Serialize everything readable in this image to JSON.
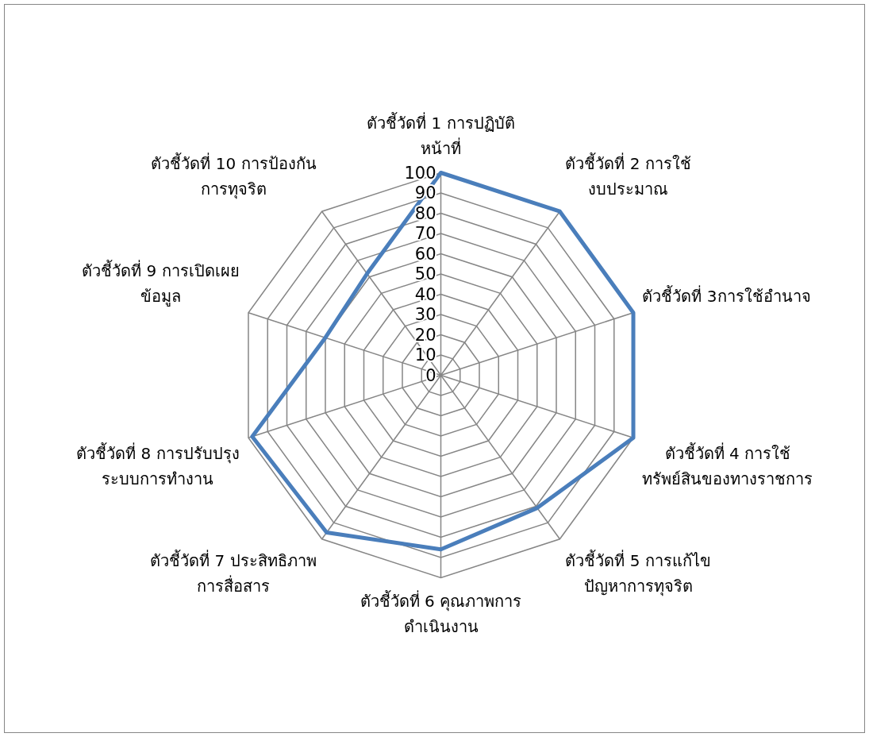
{
  "chart_data": {
    "type": "radar",
    "categories": [
      "ตัวชี้วัดที่ 1 การปฏิบัติ\nหน้าที่",
      "ตัวชี้วัดที่ 2 การใช้\nงบประมาณ",
      "ตัวชี้วัดที่ 3การใช้อำนาจ",
      "ตัวชี้วัดที่ 4 การใช้\nทรัพย์สินของทางราชการ",
      "ตัวชี้วัดที่ 5 การแก้ไข\nปัญหาการทุจริต",
      "ตัวชี้วัดที่ 6 คุณภาพการ\nดำเนินงาน",
      "ตัวชี้วัดที่ 7 ประสิทธิภาพ\nการสื่อสาร",
      "ตัวชี้วัดที่ 8 การปรับปรุง\nระบบการทำงาน",
      "ตัวชี้วัดที่ 9 การเปิดเผย\nข้อมูล",
      "ตัวชี้วัดที่ 10 การป้องกัน\nการทุจริต"
    ],
    "series": [
      {
        "color": "#4a7ebb",
        "values": [
          100,
          100,
          100,
          100,
          81,
          86,
          96,
          98,
          60,
          62
        ]
      }
    ],
    "ylim": [
      0,
      100
    ],
    "yticks": [
      0,
      10,
      20,
      30,
      40,
      50,
      60,
      70,
      80,
      90,
      100
    ],
    "grid": true,
    "marker": "none"
  }
}
